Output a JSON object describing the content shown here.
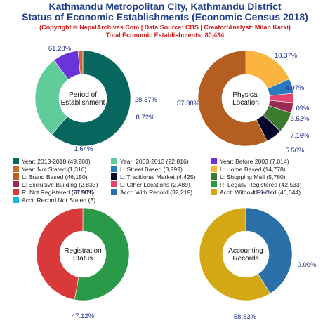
{
  "header": {
    "title_line1": "Kathmandu Metropolitan City, Kathmandu District",
    "title_line2": "Status of Economic Establishments (Economic Census 2018)",
    "copyright": "(Copyright © NepalArchives.Com | Data Source: CBS | Creator/Analyst: Milan Karki)",
    "total": "Total Economic Establishments: 80,434"
  },
  "chart_data": [
    {
      "type": "pie",
      "center_label": [
        "Period of",
        "Establishment"
      ],
      "slices": [
        {
          "name": "Year: 2013-2018 (49,288)",
          "value": 49288,
          "pct_label": "61.28%",
          "color": "#07675f"
        },
        {
          "name": "Year: 2003-2013 (22,816)",
          "value": 22816,
          "pct_label": "28.37%",
          "color": "#5fcc9a"
        },
        {
          "name": "Year: Before 2003 (7,014)",
          "value": 7014,
          "pct_label": "8.72%",
          "color": "#6a34d8"
        },
        {
          "name": "Year: Not Stated (1,316)",
          "value": 1316,
          "pct_label": "1.64%",
          "color": "#c96c32"
        }
      ]
    },
    {
      "type": "pie",
      "center_label": [
        "Physical",
        "Location"
      ],
      "slices": [
        {
          "name": "L: Home Based (14,778)",
          "value": 14778,
          "pct_label": "18.37%",
          "color": "#fbb43f"
        },
        {
          "name": "L: Street Based (3,999)",
          "value": 3999,
          "pct_label": "4.97%",
          "color": "#2a7bbd"
        },
        {
          "name": "L: Other Locations (2,489)",
          "value": 2489,
          "pct_label": "3.09%",
          "color": "#e4436c"
        },
        {
          "name": "L: Exclusive Building (2,833)",
          "value": 2833,
          "pct_label": "3.52%",
          "color": "#9a2a53"
        },
        {
          "name": "L: Shopping Mall (5,760)",
          "value": 5760,
          "pct_label": "7.16%",
          "color": "#3c7a2e"
        },
        {
          "name": "L: Traditional Market (4,425)",
          "value": 4425,
          "pct_label": "5.50%",
          "color": "#06062a"
        },
        {
          "name": "L: Brand Based (46,150)",
          "value": 46150,
          "pct_label": "57.38%",
          "color": "#b45e22"
        }
      ]
    },
    {
      "type": "pie",
      "center_label": [
        "Registration",
        "Status"
      ],
      "slices": [
        {
          "name": "R: Legally Registered (42,533)",
          "value": 42533,
          "pct_label": "52.88%",
          "color": "#2a9a48"
        },
        {
          "name": "R: Not Registered (37,901)",
          "value": 37901,
          "pct_label": "47.12%",
          "color": "#d83a3a"
        }
      ]
    },
    {
      "type": "pie",
      "center_label": [
        "Accounting",
        "Records"
      ],
      "slices": [
        {
          "name": "Acct: With Record (32,219)",
          "value": 32219,
          "pct_label": "41.17%",
          "color": "#2a6fa8"
        },
        {
          "name": "Acct: Without Record (46,044)",
          "value": 46044,
          "pct_label": "58.83%",
          "color": "#d3a814"
        },
        {
          "name": "Acct: Record Not Stated (3)",
          "value": 3,
          "pct_label": "0.00%",
          "color": "#18b8e2"
        }
      ]
    }
  ],
  "legend": [
    {
      "label": "Year: 2013-2018 (49,288)",
      "color": "#07675f"
    },
    {
      "label": "Year: 2003-2013 (22,816)",
      "color": "#5fcc9a"
    },
    {
      "label": "Year: Before 2003 (7,014)",
      "color": "#6a34d8"
    },
    {
      "label": "Year: Not Stated (1,316)",
      "color": "#c96c32"
    },
    {
      "label": "L: Street Based (3,999)",
      "color": "#2a7bbd"
    },
    {
      "label": "L: Home Based (14,778)",
      "color": "#fbb43f"
    },
    {
      "label": "L: Brand Based (46,150)",
      "color": "#b45e22"
    },
    {
      "label": "L: Traditional Market (4,425)",
      "color": "#06062a"
    },
    {
      "label": "L: Shopping Mall (5,760)",
      "color": "#3c7a2e"
    },
    {
      "label": "L: Exclusive Building (2,833)",
      "color": "#9a2a53"
    },
    {
      "label": "L: Other Locations (2,489)",
      "color": "#e4436c"
    },
    {
      "label": "R: Legally Registered (42,533)",
      "color": "#2a9a48"
    },
    {
      "label": "R: Not Registered (37,901)",
      "color": "#d83a3a"
    },
    {
      "label": "Acct: With Record (32,219)",
      "color": "#2a6fa8"
    },
    {
      "label": "Acct: Without Record (46,044)",
      "color": "#d3a814"
    },
    {
      "label": "Acct: Record Not Stated (3)",
      "color": "#18b8e2"
    }
  ]
}
